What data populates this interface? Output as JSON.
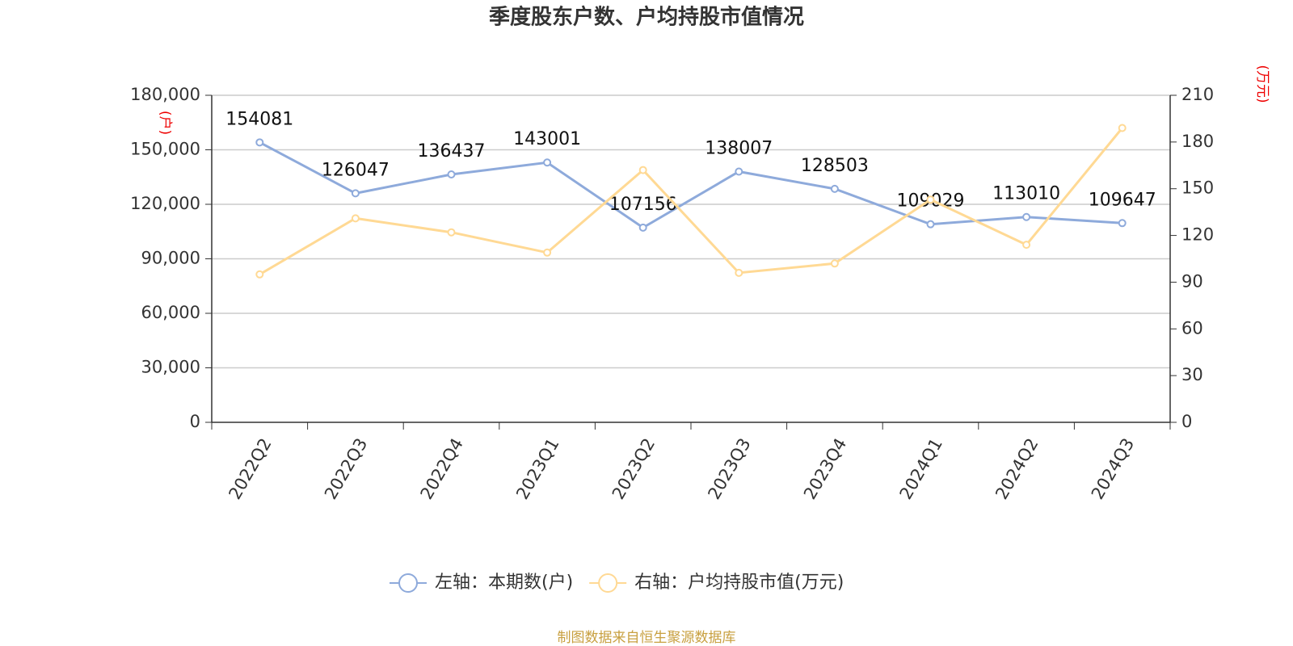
{
  "chart_data": {
    "type": "line",
    "title": "季度股东户数、户均持股市值情况",
    "y_unit": "(户)",
    "y2_unit": "(万元)",
    "categories": [
      "2022Q2",
      "2022Q3",
      "2022Q4",
      "2023Q1",
      "2023Q2",
      "2023Q3",
      "2023Q4",
      "2024Q1",
      "2024Q2",
      "2024Q3"
    ],
    "series": [
      {
        "name": "左轴：本期数(户)",
        "color": "#8eaadb",
        "axis": "y",
        "values": [
          154081,
          126047,
          136437,
          143001,
          107156,
          138007,
          128503,
          109029,
          113010,
          109647
        ]
      },
      {
        "name": "右轴：户均持股市值(万元)",
        "color": "#ffd994",
        "axis": "y2",
        "values": [
          95,
          131,
          122,
          109,
          162,
          96,
          102,
          143,
          114,
          189
        ]
      }
    ],
    "ylim": [
      0,
      180000
    ],
    "yticks": [
      0,
      {
        "value": 30000,
        "label": "30,000"
      },
      {
        "value": 60000,
        "label": "60,000"
      },
      {
        "value": 90000,
        "label": "90,000"
      },
      {
        "value": 120000,
        "label": "120,000"
      },
      {
        "value": 150000,
        "label": "150,000"
      },
      {
        "value": 180000,
        "label": "180,000"
      }
    ],
    "y2lim": [
      0,
      210
    ],
    "y2ticks": [
      0,
      30,
      60,
      90,
      120,
      150,
      180,
      210
    ],
    "grid": true,
    "legend": "bottom",
    "source": "制图数据来自恒生聚源数据库"
  }
}
